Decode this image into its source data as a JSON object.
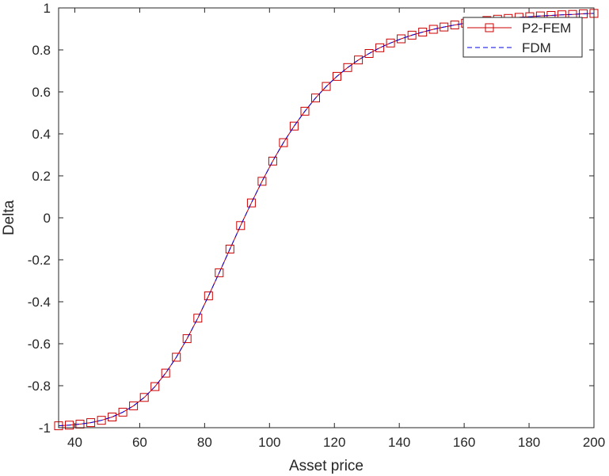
{
  "chart_data": {
    "type": "line",
    "title": "",
    "xlabel": "Asset price",
    "ylabel": "Delta",
    "xlim": [
      35,
      200
    ],
    "ylim": [
      -1,
      1
    ],
    "xticks": [
      40,
      60,
      80,
      100,
      120,
      140,
      160,
      180,
      200
    ],
    "yticks": [
      -1,
      -0.8,
      -0.6,
      -0.4,
      -0.2,
      0,
      0.2,
      0.4,
      0.6,
      0.8,
      1
    ],
    "xtick_labels": [
      "40",
      "60",
      "80",
      "100",
      "120",
      "140",
      "160",
      "180",
      "200"
    ],
    "ytick_labels": [
      "-1",
      "-0.8",
      "-0.6",
      "-0.4",
      "-0.2",
      "0",
      "0.2",
      "0.4",
      "0.6",
      "0.8",
      "1"
    ],
    "grid": false,
    "legend_position": "top-right",
    "series": [
      {
        "name": "P2-FEM",
        "color": "#cc0000",
        "line_style": "solid",
        "marker": "square",
        "x": [
          35,
          38.3,
          41.6,
          44.9,
          48.2,
          51.5,
          54.8,
          58.1,
          61.4,
          64.7,
          68.0,
          71.3,
          74.6,
          77.9,
          81.2,
          84.5,
          87.8,
          91.1,
          94.4,
          97.7,
          101.0,
          104.3,
          107.6,
          110.9,
          114.2,
          117.5,
          120.8,
          124.1,
          127.4,
          130.7,
          134.0,
          137.3,
          140.6,
          143.9,
          147.2,
          150.5,
          153.8,
          157.1,
          160.4,
          163.7,
          167.0,
          170.3,
          173.6,
          176.9,
          180.2,
          183.5,
          186.8,
          190.1,
          193.4,
          196.7,
          200.0
        ],
        "values": [
          -0.991,
          -0.988,
          -0.983,
          -0.976,
          -0.965,
          -0.949,
          -0.926,
          -0.896,
          -0.856,
          -0.804,
          -0.74,
          -0.664,
          -0.576,
          -0.478,
          -0.372,
          -0.262,
          -0.149,
          -0.037,
          0.071,
          0.174,
          0.27,
          0.358,
          0.437,
          0.508,
          0.571,
          0.626,
          0.674,
          0.716,
          0.752,
          0.783,
          0.81,
          0.833,
          0.853,
          0.87,
          0.885,
          0.898,
          0.909,
          0.919,
          0.927,
          0.934,
          0.94,
          0.946,
          0.95,
          0.955,
          0.958,
          0.962,
          0.964,
          0.967,
          0.969,
          0.972,
          0.974
        ]
      },
      {
        "name": "FDM",
        "color": "#0000dd",
        "line_style": "dashed",
        "marker": "none",
        "x": [
          35,
          38.3,
          41.6,
          44.9,
          48.2,
          51.5,
          54.8,
          58.1,
          61.4,
          64.7,
          68.0,
          71.3,
          74.6,
          77.9,
          81.2,
          84.5,
          87.8,
          91.1,
          94.4,
          97.7,
          101.0,
          104.3,
          107.6,
          110.9,
          114.2,
          117.5,
          120.8,
          124.1,
          127.4,
          130.7,
          134.0,
          137.3,
          140.6,
          143.9,
          147.2,
          150.5,
          153.8,
          157.1,
          160.4,
          163.7,
          167.0,
          170.3,
          173.6,
          176.9,
          180.2,
          183.5,
          186.8,
          190.1,
          193.4,
          196.7,
          200.0
        ],
        "values": [
          -0.991,
          -0.988,
          -0.983,
          -0.976,
          -0.965,
          -0.949,
          -0.926,
          -0.896,
          -0.856,
          -0.804,
          -0.74,
          -0.664,
          -0.576,
          -0.478,
          -0.372,
          -0.262,
          -0.149,
          -0.037,
          0.071,
          0.174,
          0.27,
          0.358,
          0.437,
          0.508,
          0.571,
          0.626,
          0.674,
          0.716,
          0.752,
          0.783,
          0.81,
          0.833,
          0.853,
          0.87,
          0.885,
          0.898,
          0.909,
          0.919,
          0.927,
          0.934,
          0.94,
          0.946,
          0.95,
          0.955,
          0.958,
          0.962,
          0.964,
          0.967,
          0.969,
          0.972,
          0.974
        ]
      }
    ]
  }
}
